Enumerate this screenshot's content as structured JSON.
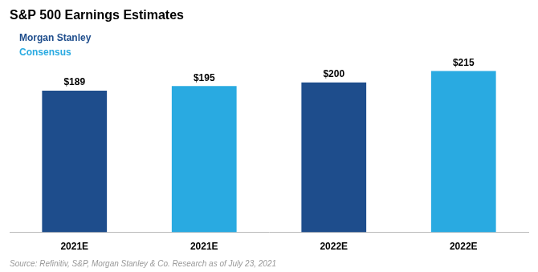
{
  "chart_data": {
    "type": "bar",
    "title": "S&P 500 Earnings Estimates",
    "categories": [
      "2021E",
      "2021E",
      "2022E",
      "2022E"
    ],
    "values": [
      189,
      195,
      200,
      215
    ],
    "value_labels": [
      "$189",
      "$195",
      "$200",
      "$215"
    ],
    "colors": [
      "#1e4d8c",
      "#29aae1",
      "#1e4d8c",
      "#29aae1"
    ],
    "ylim": [
      0,
      270
    ],
    "grid": false,
    "data_labels": true,
    "tick_labels": "x",
    "annotations": [
      {
        "text": "Morgan Stanley",
        "color": "#1e4d8c"
      },
      {
        "text": "Consensus",
        "color": "#29aae1"
      },
      {
        "text": "Source: Refinitiv, S&P, Morgan Stanley & Co. Research as of July 23, 2021"
      }
    ]
  }
}
